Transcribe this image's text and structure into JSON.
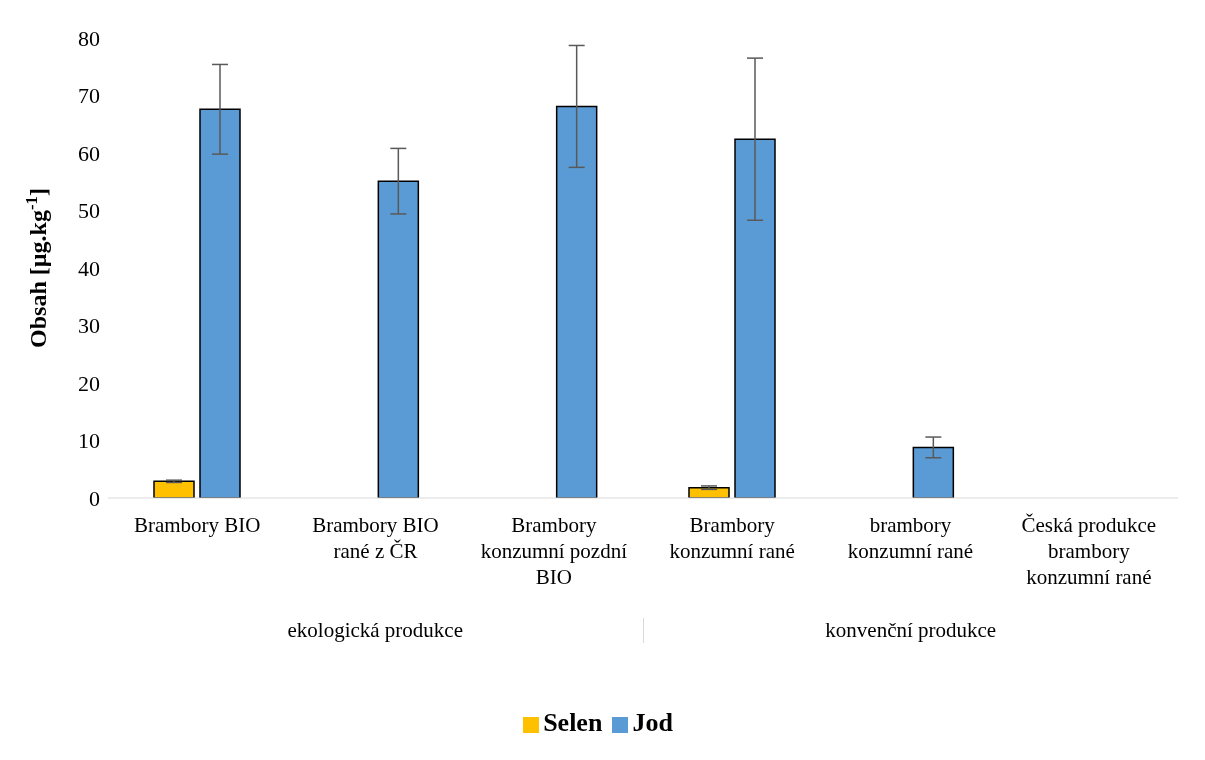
{
  "chart_data": {
    "type": "bar",
    "ylabel": "Obsah [µg.kg$^{-1}$]",
    "categories": [
      "Brambory BIO",
      "Brambory BIO rané z ČR",
      "Brambory konzumní pozdní BIO",
      "Brambory konzumní rané",
      "brambory konzumní rané",
      "Česká produkce brambory konzumní rané"
    ],
    "series": [
      {
        "name": "Selen",
        "color": "#ffc000",
        "values": [
          2.9,
          null,
          null,
          1.8,
          null,
          null
        ],
        "errors": [
          0.2,
          null,
          null,
          0.3,
          null,
          null
        ]
      },
      {
        "name": "Jod",
        "color": "#5b9bd5",
        "values": [
          67.6,
          55.1,
          68.1,
          62.4,
          8.8,
          null
        ],
        "errors": [
          7.8,
          5.7,
          10.6,
          14.1,
          1.8,
          null
        ]
      }
    ],
    "ylim": [
      0,
      80
    ],
    "yticks": [
      0,
      10,
      20,
      30,
      40,
      50,
      60,
      70,
      80
    ],
    "legend": "bottom",
    "annotations": [
      "ekologická produkce",
      "konvenční produkce"
    ]
  }
}
